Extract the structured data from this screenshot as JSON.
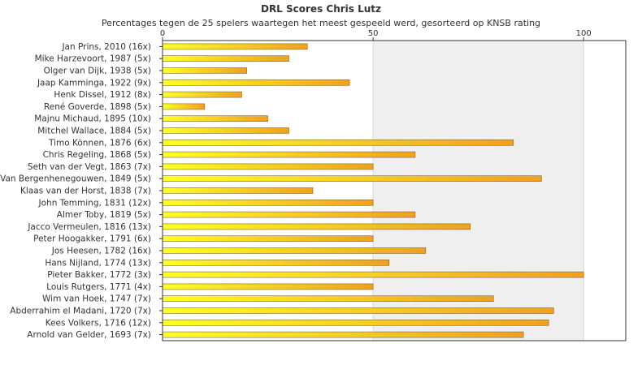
{
  "chart_data": {
    "type": "bar",
    "orientation": "horizontal",
    "title": "DRL Scores Chris Lutz",
    "subtitle": "Percentages tegen de 25 spelers waartegen het meest gespeeld werd, gesorteerd op KNSB rating",
    "xlabel": "",
    "ylabel": "",
    "xlim": [
      0,
      110
    ],
    "xticks": [
      0,
      50,
      100
    ],
    "grid": true,
    "legend": "none",
    "colors": {
      "bar_start": "#ffff22",
      "bar_end": "#f0a020",
      "bar_stroke": "#7a6a40",
      "band": "#efefef"
    },
    "categories": [
      "Jan Prins, 2010 (16x)",
      "Mike Harzevoort, 1987 (5x)",
      "Olger van Dijk, 1938 (5x)",
      "Jaap Kamminga, 1922 (9x)",
      "Henk Dissel, 1912 (8x)",
      "René Goverde, 1898 (5x)",
      "Majnu Michaud, 1895 (10x)",
      "Mitchel Wallace, 1884 (5x)",
      "Timo Können, 1876 (6x)",
      "Chris Regeling, 1868 (5x)",
      "Seth van der Vegt, 1863 (7x)",
      "Van Bergenhenegouwen, 1849 (5x)",
      "Klaas van der Horst, 1838 (7x)",
      "John Temming, 1831 (12x)",
      "Almer Toby, 1819 (5x)",
      "Jacco Vermeulen, 1816 (13x)",
      "Peter Hoogakker, 1791 (6x)",
      "Jos Heesen, 1782 (16x)",
      "Hans Nijland, 1774 (13x)",
      "Pieter Bakker, 1772 (3x)",
      "Louis Rutgers, 1771 (4x)",
      "Wim van Hoek, 1747 (7x)",
      "Abderrahim el Madani, 1720 (7x)",
      "Kees Volkers, 1716 (12x)",
      "Arnold van Gelder, 1693 (7x)"
    ],
    "values": [
      34.4,
      30,
      20,
      44.4,
      18.8,
      10,
      25,
      30,
      83.3,
      60,
      50,
      90,
      35.7,
      50,
      60,
      73.1,
      50,
      62.5,
      53.8,
      100,
      50,
      78.6,
      92.9,
      91.7,
      85.7
    ]
  }
}
